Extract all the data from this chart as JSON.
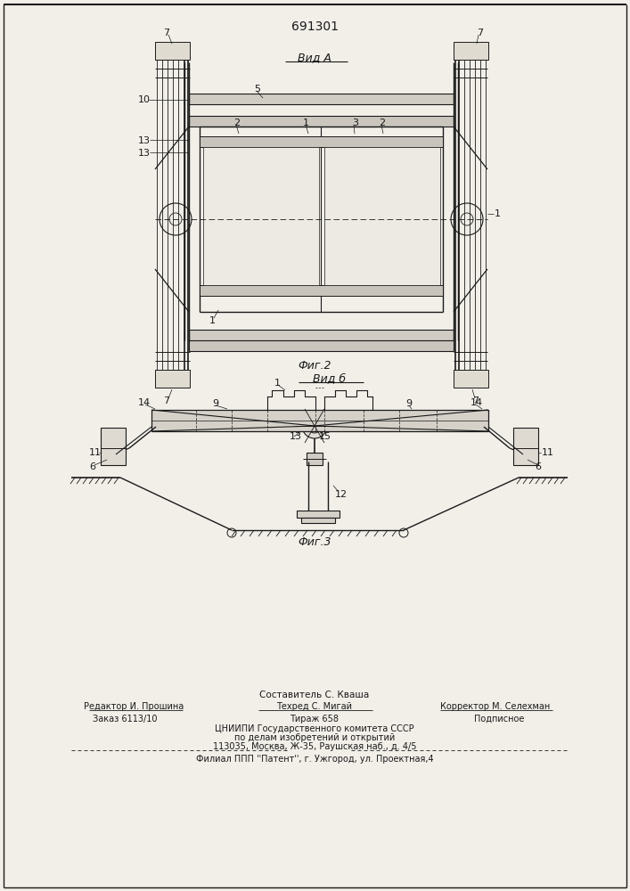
{
  "patent_number": "691301",
  "bg_color": "#f2efe9",
  "line_color": "#1a1a1a",
  "title_view_a": "Вид А",
  "title_view_b": "Вид б",
  "fig2_caption": "Фиг.2",
  "fig3_caption": "Фиг.3",
  "footer_line1": "Составитель С. Кваша",
  "footer_line2_left": "Редактор И. Прошина",
  "footer_line2_mid": "Техред С. Мигай",
  "footer_line2_right": "Корректор М. Селехман",
  "footer_line3_left": "Заказ 6113/10",
  "footer_line3_mid": "Тираж 658",
  "footer_line3_right": "Подписное",
  "footer_line4": "ЦНИИПИ Государственного комитета СССР",
  "footer_line5": "по делам изобретений и открытий",
  "footer_line6": "113035, Москва, Ж-35, Раушская наб., д. 4/5",
  "footer_line7": "Филиал ППП ''Патент'', г. Ужгород, ул. Проектная,4"
}
